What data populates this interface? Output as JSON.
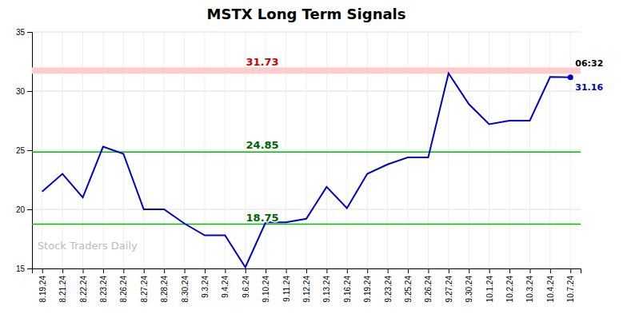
{
  "chart_data": {
    "type": "line",
    "title": "MSTX Long Term Signals",
    "categories": [
      "8.19.24",
      "8.21.24",
      "8.22.24",
      "8.23.24",
      "8.26.24",
      "8.27.24",
      "8.28.24",
      "8.30.24",
      "9.3.24",
      "9.4.24",
      "9.6.24",
      "9.10.24",
      "9.11.24",
      "9.12.24",
      "9.13.24",
      "9.16.24",
      "9.19.24",
      "9.23.24",
      "9.25.24",
      "9.26.24",
      "9.27.24",
      "9.30.24",
      "10.1.24",
      "10.2.24",
      "10.3.24",
      "10.4.24",
      "10.7.24"
    ],
    "values": [
      21.5,
      23.0,
      21.0,
      25.3,
      24.7,
      20.0,
      20.0,
      18.8,
      17.8,
      17.8,
      15.1,
      18.9,
      18.9,
      19.2,
      21.9,
      20.1,
      23.0,
      23.8,
      24.4,
      24.4,
      31.5,
      28.9,
      27.2,
      27.5,
      27.5,
      31.2,
      31.16
    ],
    "color": "#0000cc",
    "ylim": [
      15,
      35
    ],
    "yticks": [
      15,
      20,
      25,
      30,
      35
    ],
    "grid": true,
    "reference_lines": [
      {
        "value": 31.73,
        "label": "31.73",
        "type": "band",
        "color": "#ffcccc",
        "label_color": "#cc0000"
      },
      {
        "value": 24.85,
        "label": "24.85",
        "type": "line",
        "color": "#00bb00",
        "label_color": "#006600"
      },
      {
        "value": 18.75,
        "label": "18.75",
        "type": "line",
        "color": "#00bb00",
        "label_color": "#006600"
      }
    ],
    "annotations": [
      {
        "text": "06:32",
        "color": "#000000"
      },
      {
        "text": "31.16",
        "color": "#0000cc"
      }
    ],
    "watermark": {
      "text": "Stock Traders Daily",
      "color": "#bbbbbb"
    }
  }
}
